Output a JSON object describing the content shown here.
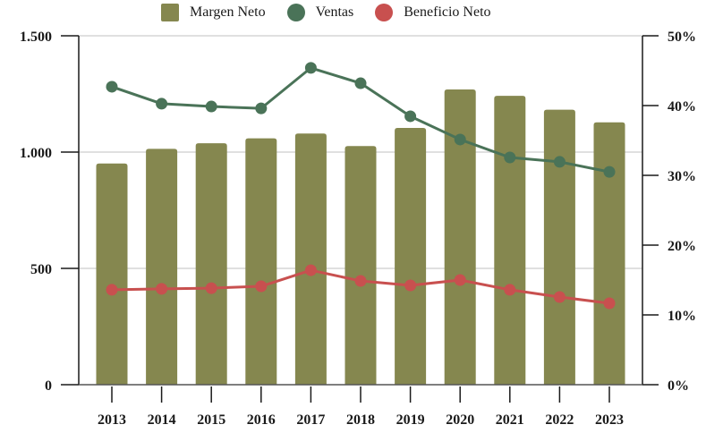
{
  "chart_data": {
    "type": "bar",
    "title": "",
    "xlabel": "",
    "ylabel": "",
    "categories": [
      "2013",
      "2014",
      "2015",
      "2016",
      "2017",
      "2018",
      "2019",
      "2020",
      "2021",
      "2022",
      "2023"
    ],
    "series": [
      {
        "name": "Margen Neto",
        "type": "bar",
        "axis": "right",
        "color": "#85874f",
        "values": [
          31.7,
          33.8,
          34.6,
          35.3,
          36.0,
          34.2,
          36.8,
          42.3,
          41.4,
          39.4,
          37.6
        ]
      },
      {
        "name": "Ventas",
        "type": "line",
        "axis": "left",
        "color": "#4a7358",
        "values": [
          1281,
          1208,
          1196,
          1188,
          1362,
          1296,
          1154,
          1054,
          977,
          958,
          915
        ]
      },
      {
        "name": "Beneficio Neto",
        "type": "line",
        "axis": "left",
        "color": "#c8504f",
        "values": [
          408,
          412,
          415,
          423,
          492,
          446,
          427,
          450,
          408,
          377,
          350
        ]
      }
    ],
    "left_axis": {
      "ylim": [
        0,
        1500
      ],
      "ticks": [
        0,
        500,
        1000,
        1500
      ],
      "tick_labels": [
        "0",
        "500",
        "1.000",
        "1.500"
      ]
    },
    "right_axis": {
      "ylim": [
        0,
        50
      ],
      "ticks": [
        0,
        10,
        20,
        30,
        40,
        50
      ],
      "tick_labels": [
        "0%",
        "10%",
        "20%",
        "30%",
        "40%",
        "50%"
      ]
    },
    "grid": true,
    "legend_position": "top-center"
  },
  "legend": {
    "items": [
      {
        "label": "Margen Neto",
        "shape": "square",
        "color": "#85874f"
      },
      {
        "label": "Ventas",
        "shape": "circle",
        "color": "#4a7358"
      },
      {
        "label": "Beneficio Neto",
        "shape": "circle",
        "color": "#c8504f"
      }
    ]
  }
}
